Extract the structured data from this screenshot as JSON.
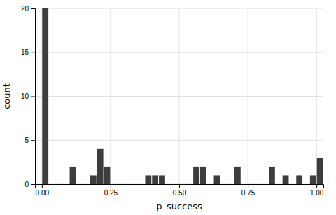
{
  "chart_data": {
    "type": "histogram",
    "x_label": "p_success",
    "y_label": "count",
    "color": "#3d3d3d",
    "bins": [
      0.0,
      0.025,
      0.05,
      0.075,
      0.1,
      0.125,
      0.15,
      0.175,
      0.2,
      0.225,
      0.25,
      0.275,
      0.3,
      0.325,
      0.35,
      0.375,
      0.4,
      0.425,
      0.45,
      0.475,
      0.5,
      0.525,
      0.55,
      0.575,
      0.6,
      0.625,
      0.65,
      0.675,
      0.7,
      0.725,
      0.75,
      0.775,
      0.8,
      0.825,
      0.85,
      0.875,
      0.9,
      0.925,
      0.95,
      0.975,
      1.0,
      1.025
    ],
    "values": [
      20,
      0,
      0,
      0,
      2,
      0,
      0,
      1,
      4,
      2,
      0,
      0,
      0,
      0,
      0,
      1,
      1,
      1,
      0,
      0,
      0,
      0,
      2,
      2,
      0,
      1,
      0,
      0,
      2,
      0,
      0,
      0,
      0,
      2,
      0,
      1,
      0,
      1,
      0,
      1,
      3
    ],
    "xlim": [
      -0.025,
      1.025
    ],
    "ylim": [
      0,
      20
    ],
    "xticks": [
      {
        "value": 0.0,
        "label": "0.00"
      },
      {
        "value": 0.25,
        "label": "0.25"
      },
      {
        "value": 0.5,
        "label": "0.50"
      },
      {
        "value": 0.75,
        "label": "0.75"
      },
      {
        "value": 1.0,
        "label": "1.00"
      }
    ],
    "yticks": [
      0,
      5,
      10,
      15,
      20
    ],
    "grid": true
  }
}
